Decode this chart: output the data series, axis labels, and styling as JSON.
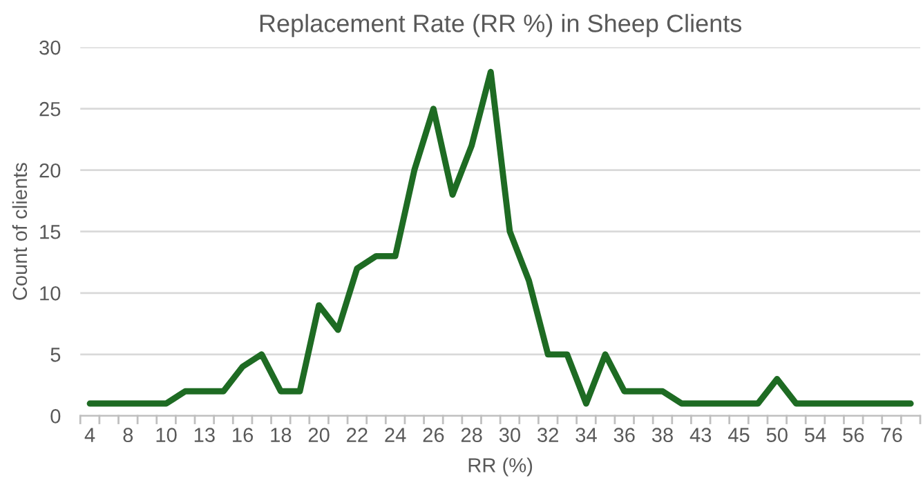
{
  "chart_data": {
    "type": "line",
    "title": "Replacement Rate (RR %) in Sheep Clients",
    "xlabel": "RR (%)",
    "ylabel": "Count of clients",
    "categories": [
      "4",
      null,
      "8",
      null,
      "10",
      null,
      "13",
      null,
      "16",
      null,
      "18",
      null,
      "20",
      null,
      "22",
      null,
      "24",
      null,
      "26",
      null,
      "28",
      null,
      "30",
      null,
      "32",
      null,
      "34",
      null,
      "36",
      null,
      "38",
      null,
      "43",
      null,
      "45",
      null,
      "50",
      null,
      "54",
      null,
      "56",
      null,
      "76",
      null
    ],
    "series": [
      {
        "color": "#1e6b23",
        "values": [
          1,
          1,
          1,
          1,
          1,
          2,
          2,
          2,
          4,
          5,
          2,
          2,
          9,
          7,
          12,
          13,
          13,
          20,
          25,
          18,
          22,
          28,
          15,
          11,
          5,
          5,
          1,
          5,
          2,
          2,
          2,
          1,
          1,
          1,
          1,
          1,
          3,
          1,
          1,
          1,
          1,
          1,
          1,
          1
        ]
      }
    ],
    "ylim": [
      0,
      30
    ],
    "yticks": [
      0,
      5,
      10,
      15,
      20,
      25,
      30
    ],
    "grid": "y",
    "legend": false,
    "marker": "none",
    "line_style": "solid"
  }
}
